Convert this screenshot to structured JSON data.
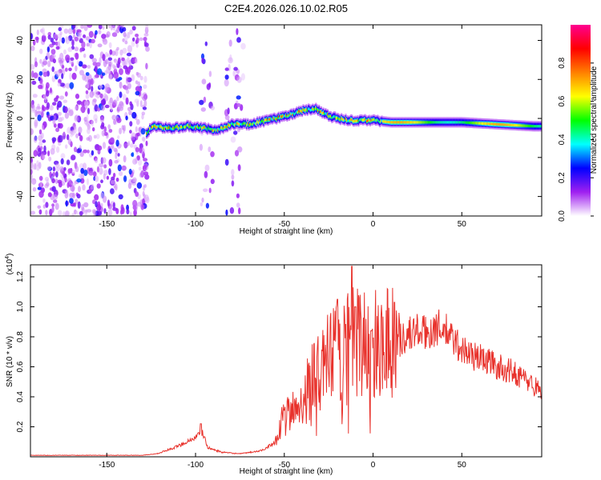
{
  "title": "C2E4.2026.026.10.02.R05",
  "chart_data": [
    {
      "type": "heatmap",
      "xlabel": "Height of straight line (km)",
      "ylabel": "Frequency (Hz)",
      "xlim": [
        -193,
        95
      ],
      "ylim": [
        -50,
        48
      ],
      "x_ticks": [
        "-150",
        "-100",
        "-50",
        "0",
        "50"
      ],
      "y_ticks": [
        "-40",
        "-20",
        "0",
        "20",
        "40"
      ],
      "colorbar": {
        "label": "Normalized spectral amplitude",
        "range": [
          0,
          1
        ],
        "ticks": [
          "0.0",
          "0.2",
          "0.4",
          "0.6",
          "0.8"
        ],
        "colors": [
          "#ffffff",
          "#a020f0",
          "#0000ff",
          "#00ffff",
          "#00ff00",
          "#ffff00",
          "#ff8000",
          "#ff0000",
          "#ff0090"
        ]
      },
      "ridge": {
        "description": "dominant frequency track vs height",
        "points": [
          [
            -128,
            -8
          ],
          [
            -125,
            -4
          ],
          [
            -115,
            -5
          ],
          [
            -105,
            -4
          ],
          [
            -95,
            -5
          ],
          [
            -88,
            -6
          ],
          [
            -80,
            -3
          ],
          [
            -70,
            -3
          ],
          [
            -60,
            -1
          ],
          [
            -50,
            1
          ],
          [
            -40,
            4
          ],
          [
            -33,
            5
          ],
          [
            -25,
            1
          ],
          [
            -15,
            -1
          ],
          [
            -5,
            -1
          ],
          [
            0,
            -1
          ],
          [
            10,
            -2
          ],
          [
            30,
            -2
          ],
          [
            50,
            -2
          ],
          [
            70,
            -3
          ],
          [
            90,
            -4
          ]
        ]
      },
      "noise_regions": [
        {
          "x_from": -193,
          "x_to": -127,
          "density": 0.9
        },
        {
          "x_from": -97,
          "x_to": -90,
          "density": 0.25
        },
        {
          "x_from": -83,
          "x_to": -73,
          "density": 0.3
        }
      ]
    },
    {
      "type": "line",
      "xlabel": "Height of straight line (km)",
      "ylabel": "SNR (10 * v/v)",
      "y_multiplier": "(x10",
      "y_multiplier_exp": "4",
      "y_multiplier_close": ")",
      "xlim": [
        -193,
        95
      ],
      "ylim": [
        0,
        1.28
      ],
      "x_ticks": [
        "-150",
        "-100",
        "-50",
        "0",
        "50"
      ],
      "y_ticks": [
        "0.2",
        "0.4",
        "0.6",
        "0.8",
        "1.0",
        "1.2"
      ],
      "series": [
        {
          "name": "SNR",
          "color": "#e8322c",
          "envelope": [
            [
              -193,
              0.01
            ],
            [
              -130,
              0.01
            ],
            [
              -122,
              0.02
            ],
            [
              -112,
              0.06
            ],
            [
              -105,
              0.1
            ],
            [
              -100,
              0.13
            ],
            [
              -96,
              0.16
            ],
            [
              -93,
              0.06
            ],
            [
              -85,
              0.03
            ],
            [
              -75,
              0.02
            ],
            [
              -63,
              0.04
            ],
            [
              -55,
              0.1
            ],
            [
              -50,
              0.27
            ],
            [
              -45,
              0.3
            ],
            [
              -40,
              0.38
            ],
            [
              -35,
              0.5
            ],
            [
              -30,
              0.55
            ],
            [
              -25,
              0.65
            ],
            [
              -20,
              0.7
            ],
            [
              -15,
              0.75
            ],
            [
              -10,
              0.78
            ],
            [
              -5,
              0.76
            ],
            [
              0,
              0.72
            ],
            [
              5,
              0.8
            ],
            [
              10,
              0.8
            ],
            [
              15,
              0.78
            ],
            [
              20,
              0.82
            ],
            [
              25,
              0.84
            ],
            [
              30,
              0.82
            ],
            [
              35,
              0.86
            ],
            [
              40,
              0.85
            ],
            [
              45,
              0.78
            ],
            [
              50,
              0.72
            ],
            [
              55,
              0.68
            ],
            [
              60,
              0.66
            ],
            [
              65,
              0.64
            ],
            [
              70,
              0.6
            ],
            [
              75,
              0.58
            ],
            [
              80,
              0.56
            ],
            [
              85,
              0.52
            ],
            [
              90,
              0.48
            ],
            [
              95,
              0.44
            ]
          ],
          "peaks": [
            [
              -12,
              1.27
            ],
            [
              -14,
              1.09
            ],
            [
              -20,
              1.05
            ],
            [
              -10,
              1.0
            ],
            [
              12,
              1.03
            ],
            [
              -1,
              0.84
            ],
            [
              -2,
              0.82
            ],
            [
              -50,
              0.31
            ],
            [
              -97,
              0.22
            ]
          ]
        }
      ]
    }
  ]
}
